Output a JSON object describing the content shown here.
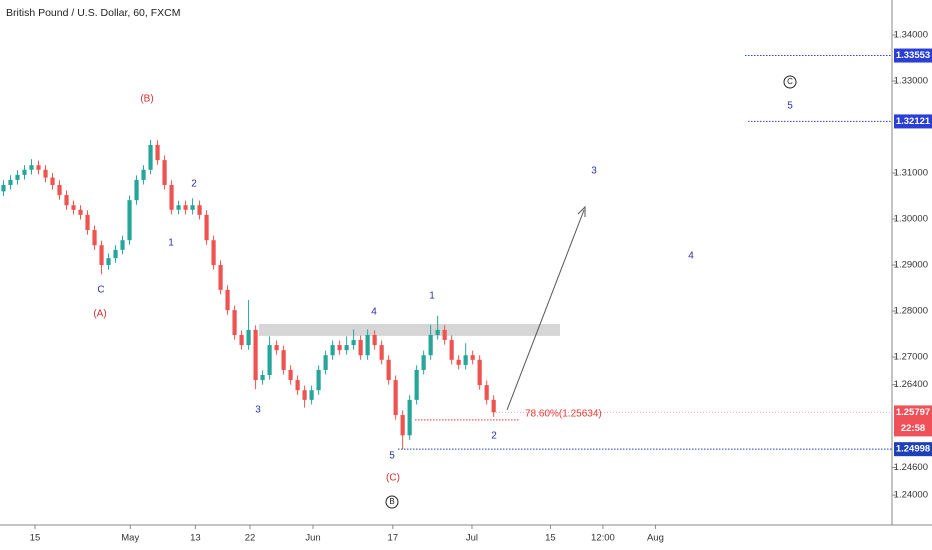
{
  "chart_data": {
    "type": "candlestick",
    "title": "British Pound / U.S. Dollar, 60, FXCM",
    "up_color": "#26a69a",
    "down_color": "#ef5350",
    "xlim": [
      -0.5,
      126.6
    ],
    "ylim": [
      1.2335,
      1.3476
    ],
    "xticks": [
      {
        "value": 4.5,
        "label": "15"
      },
      {
        "value": 18.1,
        "label": "May"
      },
      {
        "value": 27.4,
        "label": "13"
      },
      {
        "value": 35.2,
        "label": "22"
      },
      {
        "value": 44.2,
        "label": "Jun"
      },
      {
        "value": 55.6,
        "label": "17"
      },
      {
        "value": 66.9,
        "label": "Jul"
      },
      {
        "value": 78.1,
        "label": "15"
      },
      {
        "value": 85.6,
        "label": "12:00"
      },
      {
        "value": 93.1,
        "label": "Aug"
      }
    ],
    "yticks": [
      {
        "value": 1.34,
        "label": "1.34000"
      },
      {
        "value": 1.33,
        "label": "1.33000"
      },
      {
        "value": 1.31,
        "label": "1.31000"
      },
      {
        "value": 1.3,
        "label": "1.30000"
      },
      {
        "value": 1.29,
        "label": "1.29000"
      },
      {
        "value": 1.28,
        "label": "1.28000"
      },
      {
        "value": 1.27,
        "label": "1.27000"
      },
      {
        "value": 1.264,
        "label": "1.26400"
      },
      {
        "value": 1.246,
        "label": "1.24600"
      },
      {
        "value": 1.24,
        "label": "1.24000"
      }
    ],
    "open": [
      1.306,
      1.3074,
      1.3085,
      1.3096,
      1.3107,
      1.3117,
      1.3107,
      1.309,
      1.3074,
      1.3052,
      1.303,
      1.302,
      1.3009,
      1.2976,
      1.2943,
      1.29,
      1.2915,
      1.2933,
      1.2954,
      1.3041,
      1.3085,
      1.3107,
      1.3161,
      1.3128,
      1.3074,
      1.302,
      1.303,
      1.302,
      1.303,
      1.3009,
      1.2954,
      1.29,
      1.2846,
      1.2802,
      1.2748,
      1.2726,
      1.2759,
      1.265,
      1.2661,
      1.2726,
      1.2715,
      1.2672,
      1.265,
      1.2628,
      1.2607,
      1.2628,
      1.2672,
      1.2704,
      1.2726,
      1.2715,
      1.2726,
      1.2737,
      1.2704,
      1.2748,
      1.2726,
      1.2694,
      1.265,
      1.2574,
      1.253,
      1.2607,
      1.2672,
      1.2704,
      1.2748,
      1.2759,
      1.2737,
      1.2694,
      1.2683,
      1.2704,
      1.2694,
      1.2639,
      1.2607
    ],
    "high": [
      1.3084,
      1.3095,
      1.3106,
      1.3117,
      1.313,
      1.3127,
      1.3117,
      1.31,
      1.3084,
      1.3062,
      1.304,
      1.303,
      1.3019,
      1.2986,
      1.2953,
      1.2925,
      1.2943,
      1.2964,
      1.3051,
      1.3095,
      1.3117,
      1.3172,
      1.3171,
      1.3138,
      1.3084,
      1.304,
      1.304,
      1.3045,
      1.304,
      1.3019,
      1.2964,
      1.291,
      1.2856,
      1.2812,
      1.2758,
      1.2824,
      1.2769,
      1.2671,
      1.2745,
      1.2736,
      1.2725,
      1.2682,
      1.266,
      1.2638,
      1.2638,
      1.2682,
      1.2714,
      1.2736,
      1.2736,
      1.2745,
      1.276,
      1.2747,
      1.276,
      1.2758,
      1.2736,
      1.2704,
      1.266,
      1.2584,
      1.2617,
      1.2682,
      1.2714,
      1.277,
      1.279,
      1.2769,
      1.2747,
      1.2704,
      1.273,
      1.2714,
      1.2704,
      1.2649,
      1.2617
    ],
    "low": [
      1.305,
      1.3064,
      1.3075,
      1.3086,
      1.3097,
      1.3097,
      1.308,
      1.3064,
      1.3042,
      1.302,
      1.301,
      1.2999,
      1.2966,
      1.2933,
      1.288,
      1.289,
      1.2905,
      1.2923,
      1.2944,
      1.3031,
      1.3075,
      1.3097,
      1.3118,
      1.3064,
      1.301,
      1.301,
      1.301,
      1.301,
      1.2999,
      1.2944,
      1.289,
      1.2836,
      1.2792,
      1.2738,
      1.2716,
      1.2716,
      1.263,
      1.264,
      1.2651,
      1.2705,
      1.2662,
      1.264,
      1.2618,
      1.259,
      1.2597,
      1.2618,
      1.2662,
      1.2694,
      1.2705,
      1.2705,
      1.2716,
      1.2694,
      1.2694,
      1.2716,
      1.2684,
      1.264,
      1.2564,
      1.25,
      1.252,
      1.2597,
      1.2662,
      1.2694,
      1.2738,
      1.2727,
      1.2684,
      1.2673,
      1.2673,
      1.2684,
      1.2629,
      1.2597,
      1.257
    ],
    "close": [
      1.3074,
      1.3085,
      1.3096,
      1.3107,
      1.3117,
      1.3107,
      1.309,
      1.3074,
      1.3052,
      1.303,
      1.302,
      1.3009,
      1.2976,
      1.2943,
      1.29,
      1.2915,
      1.2933,
      1.2954,
      1.3041,
      1.3085,
      1.3107,
      1.3161,
      1.3128,
      1.3074,
      1.302,
      1.303,
      1.302,
      1.303,
      1.3009,
      1.2954,
      1.29,
      1.2846,
      1.2802,
      1.2748,
      1.2726,
      1.2759,
      1.265,
      1.2661,
      1.2726,
      1.2715,
      1.2672,
      1.265,
      1.2628,
      1.2607,
      1.2628,
      1.2672,
      1.2704,
      1.2726,
      1.2715,
      1.2726,
      1.2737,
      1.2704,
      1.2748,
      1.2726,
      1.2694,
      1.265,
      1.2574,
      1.253,
      1.2607,
      1.2672,
      1.2704,
      1.2748,
      1.2759,
      1.2737,
      1.2694,
      1.2683,
      1.2704,
      1.2694,
      1.2639,
      1.2607,
      1.258
    ],
    "zone": [
      1.2746,
      1.2772
    ],
    "levels": [
      {
        "value": 1.33553,
        "color": "#2a3fd6"
      },
      {
        "value": 1.32121,
        "color": "#2a3fd6"
      },
      {
        "value": 1.24998,
        "color": "#1d3fb8"
      }
    ],
    "last_price": {
      "value": 1.25797,
      "color": "#f05058"
    },
    "countdown": "22:58",
    "fib_level": {
      "value": 1.25634,
      "label": "78.60%(1.25634)",
      "color": "#e53935"
    },
    "wave_labels": [
      "(B)",
      "C",
      "(A)",
      "2",
      "1",
      "3",
      "4",
      "1",
      "5",
      "(C)",
      "B",
      "2",
      "3",
      "4",
      "5",
      "C"
    ]
  }
}
